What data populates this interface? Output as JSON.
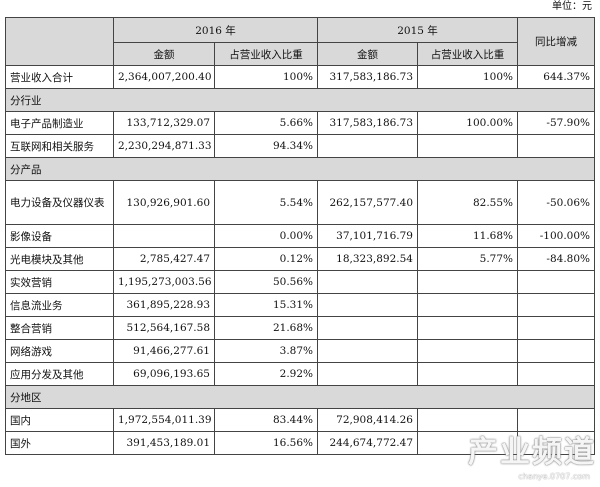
{
  "unit_label": "单位：元",
  "header": {
    "year_2016": "2016 年",
    "year_2015": "2015 年",
    "amount": "金额",
    "ratio": "占营业收入比重",
    "yoy": "同比增减"
  },
  "total": {
    "label": "营业收入合计",
    "amount_2016": "2,364,007,200.40",
    "ratio_2016": "100%",
    "amount_2015": "317,583,186.73",
    "ratio_2015": "100%",
    "yoy": "644.37%"
  },
  "sections": {
    "industry": "分行业",
    "product": "分产品",
    "region": "分地区"
  },
  "industry_rows": [
    {
      "label": "电子产品制造业",
      "amount_2016": "133,712,329.07",
      "ratio_2016": "5.66%",
      "amount_2015": "317,583,186.73",
      "ratio_2015": "100.00%",
      "yoy": "-57.90%"
    },
    {
      "label": "互联网和相关服务",
      "amount_2016": "2,230,294,871.33",
      "ratio_2016": "94.34%",
      "amount_2015": "",
      "ratio_2015": "",
      "yoy": ""
    }
  ],
  "product_rows": [
    {
      "label": "电力设备及仪器仪表",
      "amount_2016": "130,926,901.60",
      "ratio_2016": "5.54%",
      "amount_2015": "262,157,577.40",
      "ratio_2015": "82.55%",
      "yoy": "-50.06%"
    },
    {
      "label": "影像设备",
      "amount_2016": "",
      "ratio_2016": "0.00%",
      "amount_2015": "37,101,716.79",
      "ratio_2015": "11.68%",
      "yoy": "-100.00%"
    },
    {
      "label": "光电模块及其他",
      "amount_2016": "2,785,427.47",
      "ratio_2016": "0.12%",
      "amount_2015": "18,323,892.54",
      "ratio_2015": "5.77%",
      "yoy": "-84.80%"
    },
    {
      "label": "实效营销",
      "amount_2016": "1,195,273,003.56",
      "ratio_2016": "50.56%",
      "amount_2015": "",
      "ratio_2015": "",
      "yoy": ""
    },
    {
      "label": "信息流业务",
      "amount_2016": "361,895,228.93",
      "ratio_2016": "15.31%",
      "amount_2015": "",
      "ratio_2015": "",
      "yoy": ""
    },
    {
      "label": "整合营销",
      "amount_2016": "512,564,167.58",
      "ratio_2016": "21.68%",
      "amount_2015": "",
      "ratio_2015": "",
      "yoy": ""
    },
    {
      "label": "网络游戏",
      "amount_2016": "91,466,277.61",
      "ratio_2016": "3.87%",
      "amount_2015": "",
      "ratio_2015": "",
      "yoy": ""
    },
    {
      "label": "应用分发及其他",
      "amount_2016": "69,096,193.65",
      "ratio_2016": "2.92%",
      "amount_2015": "",
      "ratio_2015": "",
      "yoy": ""
    }
  ],
  "region_rows": [
    {
      "label": "国内",
      "amount_2016": "1,972,554,011.39",
      "ratio_2016": "83.44%",
      "amount_2015": "72,908,414.26",
      "ratio_2015": "",
      "yoy": ""
    },
    {
      "label": "国外",
      "amount_2016": "391,453,189.01",
      "ratio_2016": "16.56%",
      "amount_2015": "244,674,772.47",
      "ratio_2015": "",
      "yoy": ""
    }
  ],
  "watermark": {
    "text": "产业频道",
    "url": "chanye.0707.com"
  }
}
